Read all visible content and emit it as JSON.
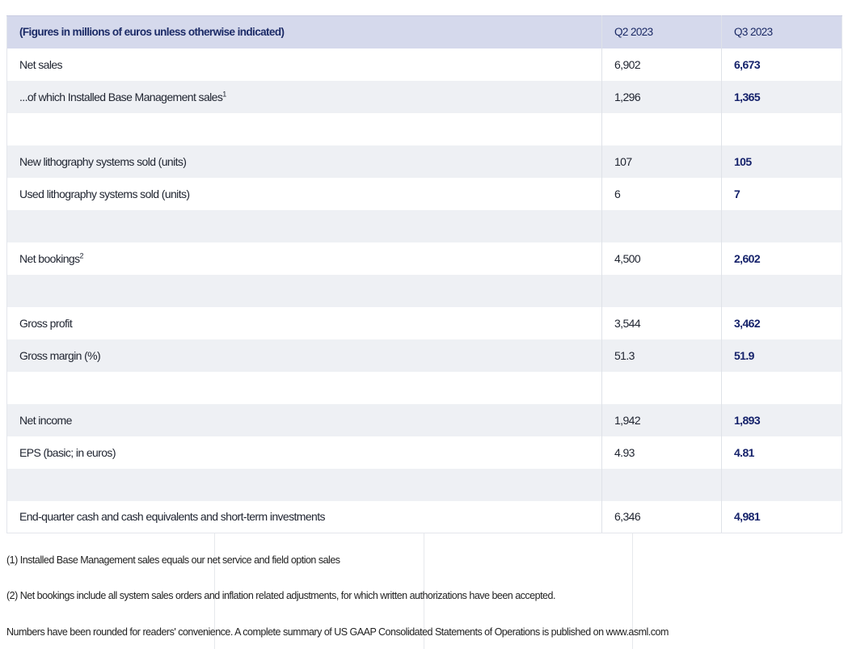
{
  "header": {
    "description": "(Figures in millions of euros unless otherwise indicated)",
    "col_q2": "Q2 2023",
    "col_q3": "Q3 2023"
  },
  "rows": [
    {
      "label": "Net sales",
      "sup": "",
      "q2": "6,902",
      "q3": "6,673"
    },
    {
      "label": "...of which Installed Base Management sales",
      "sup": "1",
      "q2": "1,296",
      "q3": "1,365"
    },
    {
      "label": "",
      "sup": "",
      "q2": "",
      "q3": ""
    },
    {
      "label": "New lithography systems sold (units)",
      "sup": "",
      "q2": "107",
      "q3": "105"
    },
    {
      "label": "Used lithography systems sold (units)",
      "sup": "",
      "q2": "6",
      "q3": "7"
    },
    {
      "label": "",
      "sup": "",
      "q2": "",
      "q3": ""
    },
    {
      "label": "Net bookings",
      "sup": "2",
      "q2": "4,500",
      "q3": "2,602"
    },
    {
      "label": "",
      "sup": "",
      "q2": "",
      "q3": ""
    },
    {
      "label": "Gross profit",
      "sup": "",
      "q2": "3,544",
      "q3": "3,462"
    },
    {
      "label": "Gross margin (%)",
      "sup": "",
      "q2": "51.3",
      "q3": "51.9"
    },
    {
      "label": "",
      "sup": "",
      "q2": "",
      "q3": ""
    },
    {
      "label": "Net income",
      "sup": "",
      "q2": "1,942",
      "q3": "1,893"
    },
    {
      "label": "EPS (basic; in euros)",
      "sup": "",
      "q2": "4.93",
      "q3": "4.81"
    },
    {
      "label": "",
      "sup": "",
      "q2": "",
      "q3": ""
    },
    {
      "label": "End-quarter cash and cash equivalents and short-term investments",
      "sup": "",
      "q2": "6,346",
      "q3": "4,981"
    }
  ],
  "notes": {
    "note1": "(1) Installed Base Management sales equals our net service and field option sales",
    "note2": "(2) Net bookings include all system sales orders and inflation related adjustments, for which written authorizations have been accepted.",
    "note3": "Numbers have been rounded for readers' convenience. A complete summary of US GAAP Consolidated Statements of Operations is published on www.asml.com"
  }
}
